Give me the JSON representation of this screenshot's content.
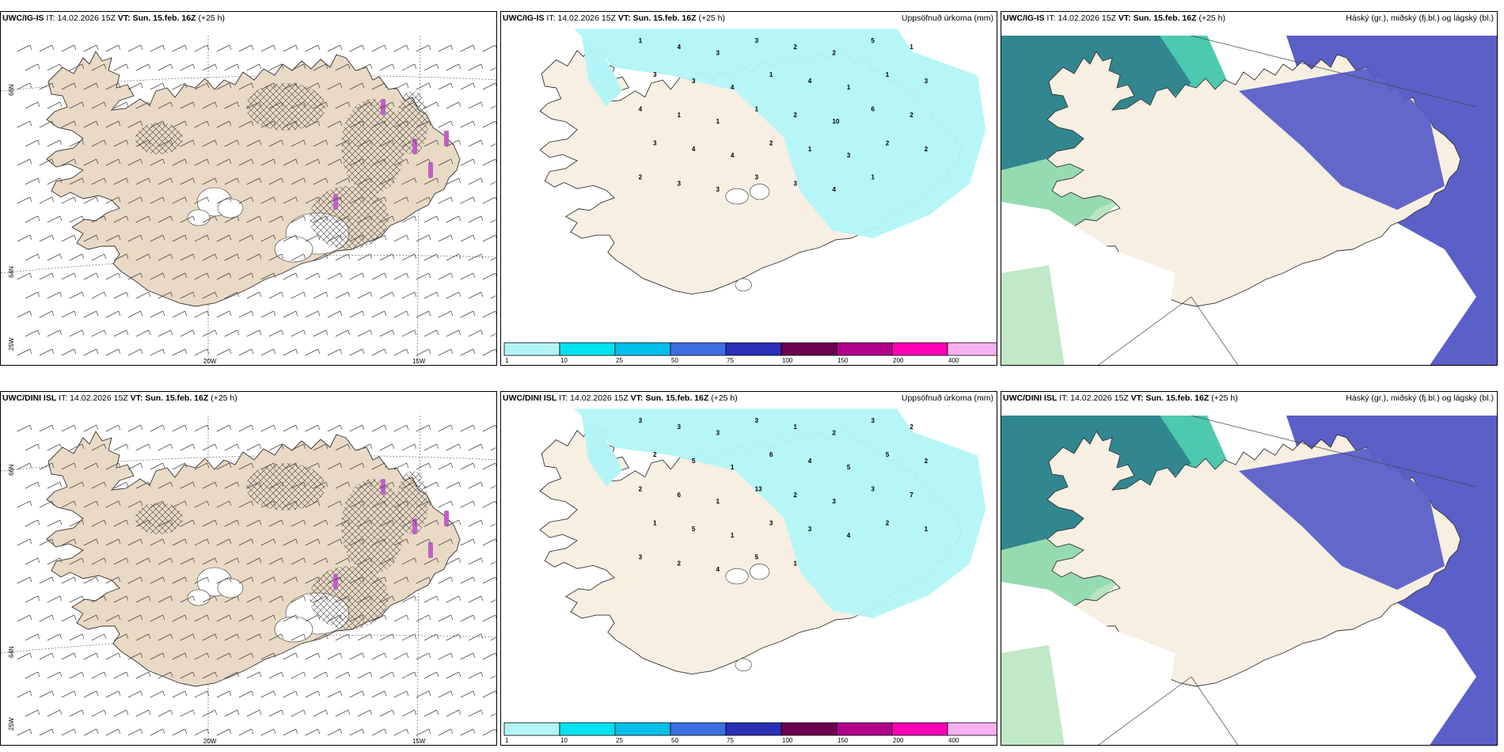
{
  "row1": {
    "panel1": {
      "model": "UWC/IG-IS",
      "issue": "IT: 14.02.2026 15Z",
      "valid": "VT: Sun. 15.feb. 16Z",
      "lead": "(+25 h)",
      "right": ""
    },
    "panel2": {
      "model": "UWC/IG-IS",
      "issue": "IT: 14.02.2026 15Z",
      "valid": "VT: Sun. 15.feb. 16Z",
      "lead": "(+25 h)",
      "right": "Uppsöfnuð úrkoma (mm)"
    },
    "panel3": {
      "model": "UWC/IG-IS",
      "issue": "IT: 14.02.2026 15Z",
      "valid": "VT: Sun. 15.feb. 16Z",
      "lead": "(+25 h)",
      "right": "Háský (gr.), miðský (fj.bl.) og lágský (bl.)"
    }
  },
  "row2": {
    "panel1": {
      "model": "UWC/DINI ISL",
      "issue": "IT: 14.02.2026 15Z",
      "valid": "VT: Sun. 15.feb. 16Z",
      "lead": "(+25 h)",
      "right": ""
    },
    "panel2": {
      "model": "UWC/DINI ISL",
      "issue": "IT: 14.02.2026 15Z",
      "valid": "VT: Sun. 15.feb. 16Z",
      "lead": "(+25 h)",
      "right": "Uppsöfnuð úrkoma (mm)"
    },
    "panel3": {
      "model": "UWC/DINI ISL",
      "issue": "IT: 14.02.2026 15Z",
      "valid": "VT: Sun. 15.feb. 16Z",
      "lead": "(+25 h)",
      "right": "Háský (gr.), miðský (fj.bl.) og lágský (bl.)"
    }
  },
  "axes": {
    "lon_w": "20W",
    "lon_e": "15W",
    "lat_n": "66N",
    "lat_m": "64N",
    "lat_s": "25W"
  },
  "legend": {
    "labels": [
      "1",
      "10",
      "25",
      "50",
      "75",
      "100",
      "150",
      "200",
      "400"
    ],
    "colors": [
      "#b3f5f7",
      "#00e3f0",
      "#00bfe8",
      "#3d6fe3",
      "#2b2fb8",
      "#6b0050",
      "#b0008c",
      "#ff00b4",
      "#f7b0f0"
    ]
  },
  "precip_labels_top": [
    "1",
    "4",
    "3",
    "3",
    "2",
    "2",
    "5",
    "1",
    "3",
    "3",
    "4",
    "1",
    "4",
    "1",
    "1",
    "3",
    "4",
    "1",
    "1",
    "1",
    "2",
    "10",
    "6",
    "2",
    "3",
    "4",
    "4",
    "2",
    "1",
    "3",
    "2",
    "2",
    "2",
    "3",
    "3",
    "3",
    "3",
    "4",
    "1"
  ],
  "precip_labels_bottom": [
    "3",
    "3",
    "3",
    "3",
    "1",
    "2",
    "3",
    "2",
    "2",
    "5",
    "1",
    "6",
    "4",
    "5",
    "5",
    "2",
    "2",
    "6",
    "1",
    "13",
    "2",
    "3",
    "3",
    "7",
    "1",
    "5",
    "1",
    "3",
    "3",
    "4",
    "2",
    "1",
    "3",
    "2",
    "4",
    "5",
    "1"
  ],
  "colors": {
    "land": "#f6efe2",
    "land_wind": "#ead9c4",
    "precip_light": "#b3f5f7",
    "cloud_high": "#5b5fc8",
    "cloud_mid": "#2dbfa0",
    "cloud_low": "#a7e0b0"
  }
}
